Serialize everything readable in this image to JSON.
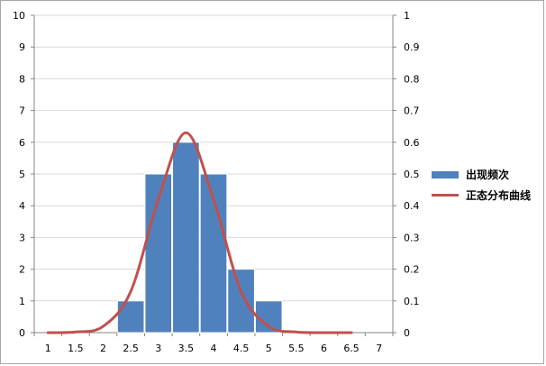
{
  "chart_data": {
    "type": "bar",
    "x_categories": [
      "1",
      "1.5",
      "2",
      "2.5",
      "3",
      "3.5",
      "4",
      "4.5",
      "5",
      "5.5",
      "6",
      "6.5",
      "7"
    ],
    "y_left": {
      "range": [
        0,
        10
      ],
      "ticks": [
        "0",
        "1",
        "2",
        "3",
        "4",
        "5",
        "6",
        "7",
        "8",
        "9",
        "10"
      ]
    },
    "y_right": {
      "range": [
        0,
        1
      ],
      "ticks": [
        "0",
        "0.1",
        "0.2",
        "0.3",
        "0.4",
        "0.5",
        "0.6",
        "0.7",
        "0.8",
        "0.9",
        "1"
      ]
    },
    "series": [
      {
        "name": "出现频次",
        "type": "bar",
        "axis": "left",
        "color": "#4f81bd",
        "x": [
          2.5,
          3,
          3.5,
          4,
          4.5,
          5
        ],
        "values": [
          1,
          5,
          6,
          5,
          2,
          1
        ]
      },
      {
        "name": "正态分布曲线",
        "type": "line",
        "axis": "right",
        "color": "#c0504d",
        "smooth": true,
        "x": [
          1,
          1.5,
          2,
          2.5,
          3,
          3.5,
          4,
          4.5,
          5,
          5.5,
          6,
          6.5
        ],
        "values": [
          0.0,
          0.002,
          0.02,
          0.13,
          0.42,
          0.63,
          0.42,
          0.13,
          0.02,
          0.002,
          0.0,
          0.0
        ]
      }
    ],
    "grid": true,
    "legend": "right"
  }
}
